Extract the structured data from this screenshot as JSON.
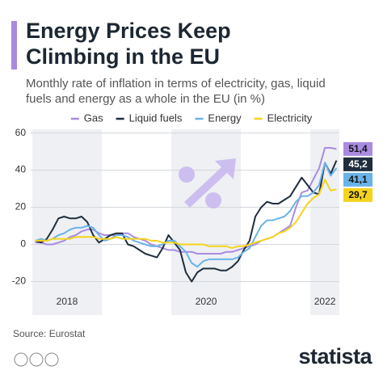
{
  "chart_data": {
    "type": "line",
    "title": "Energy Prices Keep Climbing in the EU",
    "subtitle": "Monthly rate of inflation in terms of electricity, gas, liquid fuels and energy as a whole in the EU (in %)",
    "source": "Source: Eurostat",
    "brand": "statista",
    "categories": [
      null,
      null,
      null,
      null,
      null,
      null,
      "2018",
      null,
      null,
      null,
      null,
      null,
      null,
      null,
      null,
      null,
      null,
      null,
      null,
      null,
      null,
      null,
      null,
      null,
      null,
      null,
      null,
      null,
      null,
      null,
      "2020",
      null,
      null,
      null,
      null,
      null,
      null,
      null,
      null,
      null,
      null,
      null,
      null,
      null,
      null,
      null,
      null,
      null,
      null,
      null,
      "2022",
      null,
      null
    ],
    "ylim": [
      -25,
      62
    ],
    "yticks": [
      -20,
      0,
      20,
      40,
      60
    ],
    "grid": true,
    "series": [
      {
        "name": "Gas",
        "color": "#a98be0",
        "values": [
          1,
          1,
          0,
          0,
          1,
          2,
          4,
          5,
          7,
          8,
          8,
          6,
          5,
          5,
          5,
          6,
          6,
          4,
          3,
          2,
          0,
          -1,
          -2,
          -3,
          -3,
          -4,
          -4,
          -4,
          -5,
          -5,
          -5,
          -5,
          -5,
          -4,
          -4,
          -3,
          -2,
          -1,
          0,
          2,
          3,
          4,
          6,
          8,
          10,
          20,
          28,
          29,
          35,
          41,
          52,
          52,
          51.4
        ],
        "value_labels": {
          "52": "51,4"
        }
      },
      {
        "name": "Liquid fuels",
        "color": "#1f2d3d",
        "values": [
          2,
          1,
          3,
          8,
          14,
          15,
          14,
          14,
          15,
          12,
          5,
          1,
          3,
          5,
          6,
          6,
          0,
          -1,
          -3,
          -5,
          -6,
          -7,
          -2,
          5,
          1,
          -3,
          -15,
          -20,
          -15,
          -13,
          -13,
          -13,
          -14,
          -14,
          -12,
          -9,
          -3,
          2,
          15,
          20,
          23,
          22,
          22,
          24,
          26,
          31,
          36,
          32,
          28,
          27,
          44,
          38,
          45.2
        ],
        "value_labels": {
          "52": "45,2"
        }
      },
      {
        "name": "Energy",
        "color": "#6ab3e8",
        "values": [
          2,
          3,
          2,
          3,
          5,
          6,
          8,
          9,
          9,
          10,
          9,
          5,
          2,
          3,
          5,
          5,
          4,
          2,
          1,
          0,
          -1,
          -1,
          0,
          2,
          2,
          -1,
          -4,
          -10,
          -12,
          -9,
          -8,
          -8,
          -8,
          -8,
          -8,
          -7,
          -4,
          -2,
          4,
          10,
          13,
          13,
          14,
          15,
          18,
          23,
          26,
          26,
          28,
          32,
          44,
          37,
          41.1
        ],
        "value_labels": {
          "52": "41,1"
        }
      },
      {
        "name": "Electricity",
        "color": "#f5d31c",
        "values": [
          2,
          2,
          2,
          3,
          3,
          3,
          3,
          4,
          4,
          4,
          4,
          3,
          3,
          3,
          4,
          3,
          3,
          3,
          3,
          3,
          2,
          2,
          1,
          1,
          1,
          0,
          0,
          0,
          0,
          0,
          -1,
          -1,
          -1,
          -1,
          -2,
          -1,
          -1,
          0,
          1,
          2,
          3,
          4,
          6,
          7,
          9,
          12,
          17,
          22,
          25,
          27,
          35,
          29,
          29.7
        ],
        "value_labels": {
          "52": "29,7"
        }
      }
    ]
  }
}
